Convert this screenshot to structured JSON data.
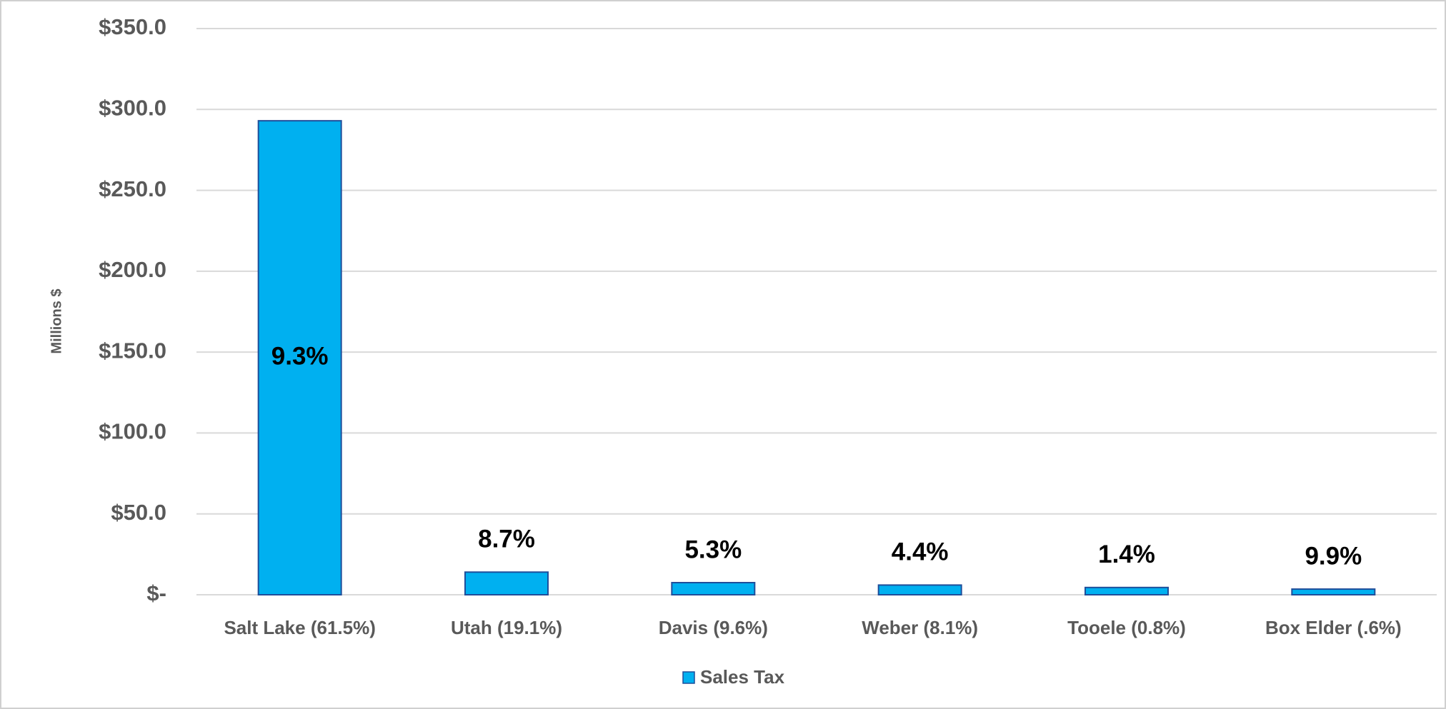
{
  "chart_data": {
    "type": "bar",
    "y_axis_label": "Millions $",
    "categories": [
      "Salt Lake (61.5%)",
      "Utah (19.1%)",
      "Davis (9.6%)",
      "Weber (8.1%)",
      "Tooele (0.8%)",
      "Box Elder (.6%)"
    ],
    "series": [
      {
        "name": "Sales Tax",
        "color": "#00b0f0",
        "values": [
          293,
          14,
          7.5,
          6,
          4.5,
          3.5
        ]
      }
    ],
    "annotations": [
      "9.3%",
      "8.7%",
      "5.3%",
      "4.4%",
      "1.4%",
      "9.9%"
    ],
    "ylim": [
      0,
      350
    ],
    "yticks": [
      {
        "value": 0,
        "label": "$-"
      },
      {
        "value": 50,
        "label": "$50.0"
      },
      {
        "value": 100,
        "label": "$100.0"
      },
      {
        "value": 150,
        "label": "$150.0"
      },
      {
        "value": 200,
        "label": "$200.0"
      },
      {
        "value": 250,
        "label": "$250.0"
      },
      {
        "value": 300,
        "label": "$300.0"
      },
      {
        "value": 350,
        "label": "$350.0"
      }
    ],
    "grid": true,
    "legend": "bottom"
  }
}
